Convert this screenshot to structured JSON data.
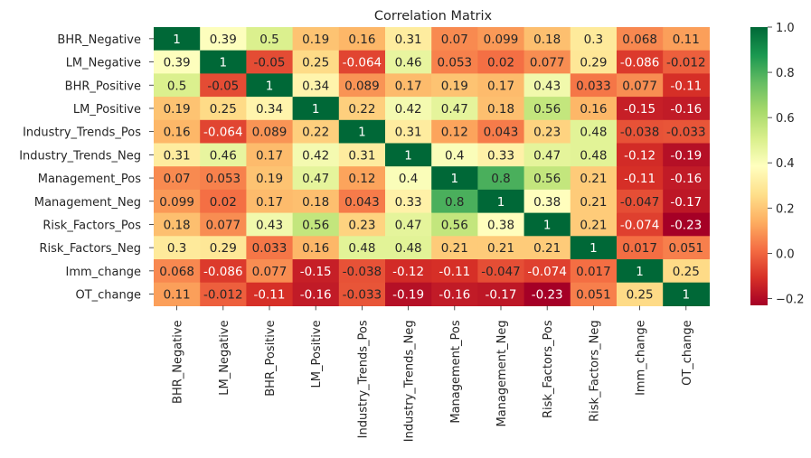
{
  "chart_data": {
    "type": "heatmap",
    "title": "Correlation Matrix",
    "rows": [
      "BHR_Negative",
      "LM_Negative",
      "BHR_Positive",
      "LM_Positive",
      "Industry_Trends_Pos",
      "Industry_Trends_Neg",
      "Management_Pos",
      "Management_Neg",
      "Risk_Factors_Pos",
      "Risk_Factors_Neg",
      "Imm_change",
      "OT_change"
    ],
    "columns": [
      "BHR_Negative",
      "LM_Negative",
      "BHR_Positive",
      "LM_Positive",
      "Industry_Trends_Pos",
      "Industry_Trends_Neg",
      "Management_Pos",
      "Management_Neg",
      "Risk_Factors_Pos",
      "Risk_Factors_Neg",
      "Imm_change",
      "OT_change"
    ],
    "values": [
      [
        1,
        0.39,
        0.5,
        0.19,
        0.16,
        0.31,
        0.07,
        0.099,
        0.18,
        0.3,
        0.068,
        0.11
      ],
      [
        0.39,
        1,
        -0.05,
        0.25,
        -0.064,
        0.46,
        0.053,
        0.02,
        0.077,
        0.29,
        -0.086,
        -0.012
      ],
      [
        0.5,
        -0.05,
        1,
        0.34,
        0.089,
        0.17,
        0.19,
        0.17,
        0.43,
        0.033,
        0.077,
        -0.11
      ],
      [
        0.19,
        0.25,
        0.34,
        1,
        0.22,
        0.42,
        0.47,
        0.18,
        0.56,
        0.16,
        -0.15,
        -0.16
      ],
      [
        0.16,
        -0.064,
        0.089,
        0.22,
        1,
        0.31,
        0.12,
        0.043,
        0.23,
        0.48,
        -0.038,
        -0.033
      ],
      [
        0.31,
        0.46,
        0.17,
        0.42,
        0.31,
        1,
        0.4,
        0.33,
        0.47,
        0.48,
        -0.12,
        -0.19
      ],
      [
        0.07,
        0.053,
        0.19,
        0.47,
        0.12,
        0.4,
        1,
        0.8,
        0.56,
        0.21,
        -0.11,
        -0.16
      ],
      [
        0.099,
        0.02,
        0.17,
        0.18,
        0.043,
        0.33,
        0.8,
        1,
        0.38,
        0.21,
        -0.047,
        -0.17
      ],
      [
        0.18,
        0.077,
        0.43,
        0.56,
        0.23,
        0.47,
        0.56,
        0.38,
        1,
        0.21,
        -0.074,
        -0.23
      ],
      [
        0.3,
        0.29,
        0.033,
        0.16,
        0.48,
        0.48,
        0.21,
        0.21,
        0.21,
        1,
        0.017,
        0.051
      ],
      [
        0.068,
        -0.086,
        0.077,
        -0.15,
        -0.038,
        -0.12,
        -0.11,
        -0.047,
        -0.074,
        0.017,
        1,
        0.25
      ],
      [
        0.11,
        -0.012,
        -0.11,
        -0.16,
        -0.033,
        -0.19,
        -0.16,
        -0.17,
        -0.23,
        0.051,
        0.25,
        1
      ]
    ],
    "colorbar": {
      "min": -0.23,
      "max": 1.0,
      "ticks": [
        -0.2,
        0.0,
        0.2,
        0.4,
        0.6,
        0.8,
        1.0
      ],
      "tick_labels": [
        "−0.2",
        "0.0",
        "0.2",
        "0.4",
        "0.6",
        "0.8",
        "1.0"
      ]
    },
    "colormap": "RdYlGn",
    "colormap_stops": [
      "#a50026",
      "#d73027",
      "#f46d43",
      "#fdae61",
      "#fee08b",
      "#ffffbf",
      "#d9ef8b",
      "#a6d96a",
      "#66bd63",
      "#1a9850",
      "#006837"
    ],
    "annotated": true,
    "grid": false
  }
}
